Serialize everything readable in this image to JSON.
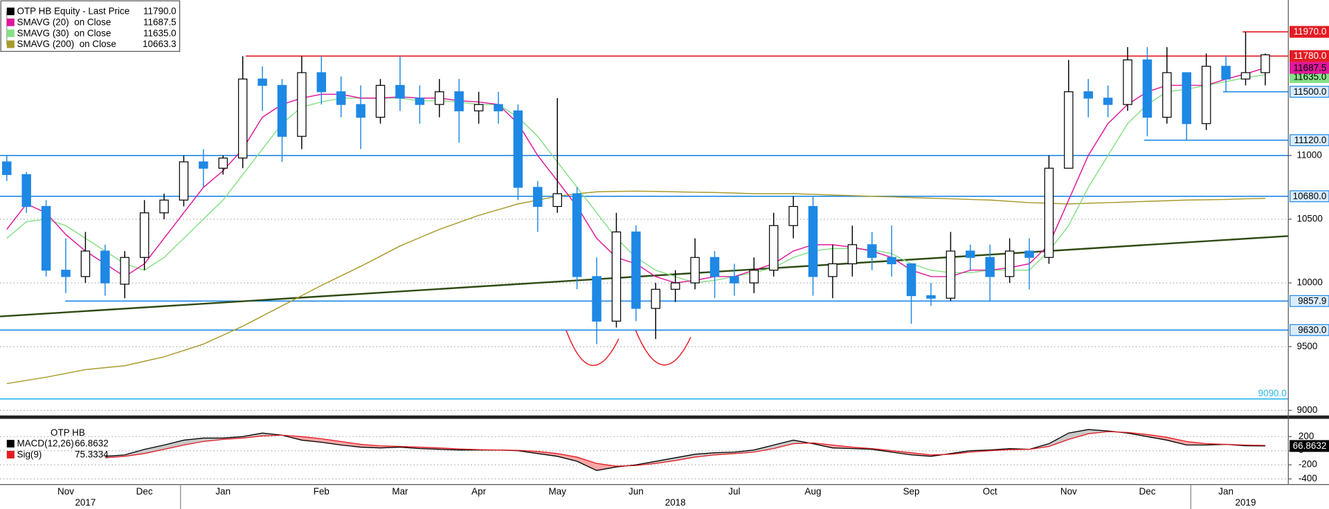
{
  "chart_data": [
    {
      "type": "candlestick",
      "price_name": "OTP HB Equity - Last Price",
      "price_legend_value": "11790.0",
      "price_color": "#000000",
      "up_color": "#000000",
      "down_color": "#1e88e5",
      "categories": [
        null,
        null,
        null,
        "Nov",
        null,
        null,
        null,
        "Dec",
        null,
        null,
        null,
        "Jan",
        null,
        null,
        null,
        null,
        "Feb",
        null,
        null,
        null,
        "Mar",
        null,
        null,
        null,
        "Apr",
        null,
        null,
        null,
        "May",
        null,
        null,
        null,
        "Jun",
        null,
        null,
        null,
        null,
        "Jul",
        null,
        null,
        null,
        "Aug",
        null,
        null,
        null,
        null,
        "Sep",
        null,
        null,
        null,
        "Oct",
        null,
        null,
        null,
        "Nov",
        null,
        null,
        null,
        "Dec",
        null,
        null,
        null,
        "Jan",
        null,
        null
      ],
      "year_labels": [
        null,
        null,
        null,
        null,
        "2017",
        null,
        null,
        null,
        null,
        null,
        null,
        null,
        null,
        null,
        null,
        null,
        null,
        null,
        null,
        null,
        null,
        null,
        null,
        null,
        null,
        null,
        null,
        null,
        null,
        null,
        null,
        null,
        null,
        null,
        "2018",
        null,
        null,
        null,
        null,
        null,
        null,
        null,
        null,
        null,
        null,
        null,
        null,
        null,
        null,
        null,
        null,
        null,
        null,
        null,
        null,
        null,
        null,
        null,
        null,
        null,
        null,
        null,
        null,
        "2019",
        null
      ],
      "open": [
        10950,
        10850,
        10600,
        10100,
        10050,
        10250,
        9990,
        10200,
        10550,
        10650,
        10950,
        10900,
        10980,
        11600,
        11550,
        11150,
        11650,
        11500,
        11400,
        11300,
        11550,
        11450,
        11400,
        11500,
        11350,
        11400,
        11350,
        10750,
        10600,
        10700,
        10050,
        9700,
        10400,
        9800,
        9950,
        10000,
        10200,
        10050,
        10000,
        10100,
        10450,
        10600,
        10050,
        10150,
        10300,
        10200,
        10150,
        9900,
        9880,
        10250,
        10200,
        10050,
        10250,
        10200,
        10900,
        11500,
        11450,
        11400,
        11750,
        11300,
        11650,
        11250,
        11700,
        11600,
        11650
      ],
      "high": [
        11000,
        10870,
        10650,
        10350,
        10400,
        10300,
        10250,
        10650,
        10700,
        11000,
        11050,
        11000,
        11780,
        11700,
        11600,
        11780,
        11780,
        11620,
        11550,
        11600,
        11780,
        11550,
        11600,
        11600,
        11500,
        11500,
        11400,
        10800,
        11450,
        10750,
        10200,
        10550,
        10450,
        10000,
        10100,
        10350,
        10250,
        10150,
        10200,
        10550,
        10680,
        10680,
        10300,
        10450,
        10400,
        10450,
        10150,
        10000,
        10400,
        10300,
        10300,
        10350,
        10350,
        11000,
        11750,
        11600,
        11550,
        11850,
        11850,
        11850,
        11650,
        11800,
        11780,
        11970,
        11800
      ],
      "low": [
        10800,
        10550,
        10050,
        9920,
        10000,
        9900,
        9880,
        10100,
        10500,
        10600,
        10750,
        10850,
        10900,
        11350,
        10950,
        11050,
        11400,
        11300,
        11050,
        11250,
        11350,
        11250,
        11300,
        11100,
        11250,
        11250,
        10650,
        10400,
        10550,
        9950,
        9520,
        9650,
        9700,
        9560,
        9850,
        9950,
        9880,
        9900,
        9920,
        10050,
        10350,
        9900,
        9880,
        10050,
        10100,
        10050,
        9680,
        9820,
        9860,
        10100,
        9860,
        10000,
        9950,
        10150,
        10900,
        11300,
        11300,
        11350,
        11150,
        11250,
        11120,
        11200,
        11500,
        11550,
        11550
      ],
      "close": [
        10850,
        10600,
        10100,
        10050,
        10250,
        10000,
        10200,
        10550,
        10650,
        10950,
        10900,
        10980,
        11600,
        11550,
        11150,
        11650,
        11500,
        11400,
        11300,
        11550,
        11450,
        11400,
        11500,
        11350,
        11400,
        11350,
        10750,
        10600,
        10700,
        10050,
        9700,
        10400,
        9800,
        9950,
        10000,
        10200,
        10050,
        10000,
        10100,
        10450,
        10600,
        10050,
        10150,
        10300,
        10200,
        10150,
        9900,
        9880,
        10250,
        10200,
        10050,
        10250,
        10200,
        10900,
        11500,
        11450,
        11400,
        11750,
        11300,
        11650,
        11250,
        11700,
        11600,
        11650,
        11790
      ],
      "series": [
        {
          "name": "SMAVG (20)  on Close",
          "legend_value": "11687.5",
          "color": "#e0179b",
          "values": [
            10420,
            10620,
            10550,
            10380,
            10250,
            10150,
            10050,
            10150,
            10350,
            10550,
            10750,
            10880,
            11050,
            11300,
            11400,
            11450,
            11480,
            11480,
            11450,
            11450,
            11460,
            11450,
            11450,
            11430,
            11420,
            11400,
            11250,
            11000,
            10800,
            10600,
            10350,
            10200,
            10150,
            10050,
            10000,
            10020,
            10050,
            10050,
            10100,
            10150,
            10250,
            10300,
            10300,
            10280,
            10250,
            10200,
            10100,
            10050,
            10050,
            10100,
            10100,
            10120,
            10150,
            10300,
            10650,
            11000,
            11250,
            11400,
            11500,
            11550,
            11550,
            11550,
            11600,
            11640,
            11687.5
          ]
        },
        {
          "name": "SMAVG (30)  on Close",
          "legend_value": "11635.0",
          "color": "#86e086",
          "values": [
            10350,
            10480,
            10500,
            10450,
            10350,
            10250,
            10150,
            10100,
            10200,
            10350,
            10500,
            10650,
            10850,
            11050,
            11250,
            11380,
            11420,
            11450,
            11450,
            11450,
            11450,
            11430,
            11430,
            11420,
            11400,
            11400,
            11300,
            11150,
            10950,
            10750,
            10550,
            10350,
            10200,
            10100,
            10050,
            10000,
            10020,
            10050,
            10080,
            10120,
            10200,
            10250,
            10270,
            10270,
            10260,
            10230,
            10150,
            10100,
            10080,
            10080,
            10100,
            10100,
            10100,
            10250,
            10450,
            10750,
            11000,
            11250,
            11400,
            11500,
            11520,
            11550,
            11580,
            11610,
            11635
          ]
        },
        {
          "name": "SMAVG (200)  on Close",
          "legend_value": "10663.3",
          "color": "#a89a2a",
          "values": [
            9210,
            9235,
            9260,
            9290,
            9320,
            9335,
            9350,
            9385,
            9420,
            9470,
            9520,
            9590,
            9660,
            9740,
            9820,
            9900,
            9980,
            10055,
            10130,
            10210,
            10290,
            10355,
            10420,
            10475,
            10530,
            10575,
            10620,
            10650,
            10680,
            10700,
            10715,
            10718,
            10720,
            10718,
            10715,
            10712,
            10710,
            10705,
            10700,
            10700,
            10700,
            10695,
            10690,
            10685,
            10680,
            10675,
            10670,
            10665,
            10660,
            10655,
            10650,
            10640,
            10630,
            10625,
            10620,
            10625,
            10630,
            10635,
            10640,
            10645,
            10650,
            10652,
            10655,
            10660,
            10663.3
          ]
        }
      ],
      "trend_line": {
        "color": "#2e4a12",
        "values": [
          9737,
          10368
        ]
      },
      "levels": [
        {
          "value": 11970,
          "label": "11970.0",
          "color": "#e31b23",
          "text_color": "#ffffff"
        },
        {
          "value": 11780,
          "label": "11780.0",
          "color": "#e31b23",
          "text_color": "#ffffff"
        },
        {
          "value": 11500,
          "label": "11500.0",
          "color": "#1e88e5",
          "text_color": "#000000"
        },
        {
          "value": 11120,
          "label": "11120.0",
          "color": "#1e88e5",
          "text_color": "#000000"
        },
        {
          "value": 11000,
          "color": "#1e88e5"
        },
        {
          "value": 10680,
          "label": "10680.0",
          "color": "#1e88e5",
          "text_color": "#000000"
        },
        {
          "value": 9857.9,
          "label": "9857.9",
          "color": "#1e88e5",
          "text_color": "#000000"
        },
        {
          "value": 9630,
          "label": "9630.0",
          "color": "#1e88e5",
          "text_color": "#000000"
        },
        {
          "value": 9090,
          "label": "9090.0",
          "color": "#29b6e8",
          "text_color": "#29b6e8"
        }
      ],
      "ylim": [
        8960,
        12220
      ],
      "yticks": [
        9000,
        9500,
        10000,
        10500,
        11000
      ],
      "grid": true
    },
    {
      "type": "macd",
      "title": "OTP HB",
      "series": [
        {
          "name": "MACD(12,26)",
          "legend_value": "66.8632",
          "color": "#000000",
          "values": [
            null,
            null,
            null,
            null,
            null,
            -80,
            -60,
            20,
            80,
            150,
            180,
            180,
            200,
            250,
            220,
            150,
            120,
            80,
            50,
            40,
            50,
            30,
            20,
            10,
            10,
            10,
            0,
            -40,
            -80,
            -150,
            -280,
            -230,
            -200,
            -150,
            -100,
            -50,
            -30,
            -20,
            10,
            80,
            150,
            100,
            40,
            30,
            20,
            -20,
            -60,
            -80,
            -40,
            0,
            10,
            30,
            20,
            100,
            250,
            300,
            280,
            250,
            200,
            150,
            80,
            80,
            90,
            70,
            66.8632
          ]
        },
        {
          "name": "Sig(9)",
          "legend_value": "75.3334",
          "color": "#e31b23",
          "values": [
            null,
            null,
            null,
            null,
            null,
            -100,
            -80,
            -40,
            20,
            80,
            130,
            160,
            180,
            210,
            220,
            200,
            170,
            130,
            90,
            70,
            60,
            50,
            40,
            25,
            15,
            10,
            5,
            -10,
            -40,
            -90,
            -180,
            -220,
            -210,
            -180,
            -140,
            -90,
            -60,
            -40,
            -20,
            30,
            100,
            110,
            80,
            50,
            30,
            0,
            -30,
            -60,
            -50,
            -20,
            0,
            15,
            20,
            60,
            160,
            240,
            270,
            260,
            230,
            190,
            130,
            100,
            90,
            80,
            75.3334
          ]
        }
      ],
      "ylim": [
        -480,
        440
      ],
      "yticks": [
        -400,
        -200,
        0,
        200
      ],
      "grid": true
    }
  ]
}
